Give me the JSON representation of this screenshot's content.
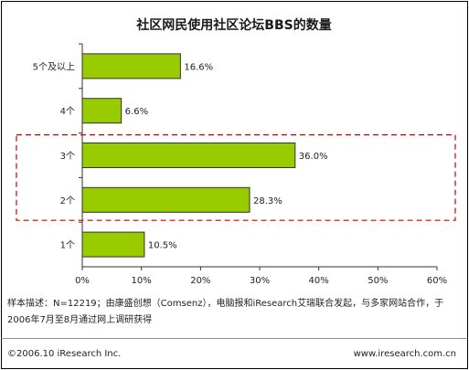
{
  "chart_data": {
    "type": "bar",
    "orientation": "horizontal",
    "title": "社区网民使用社区论坛BBS的数量",
    "categories": [
      "5个及以上",
      "4个",
      "3个",
      "2个",
      "1个"
    ],
    "values": [
      16.6,
      6.6,
      36.0,
      28.3,
      10.5
    ],
    "value_labels": [
      "16.6%",
      "6.6%",
      "36.0%",
      "28.3%",
      "10.5%"
    ],
    "xlim": [
      0,
      60
    ],
    "x_ticks": [
      "0%",
      "10%",
      "20%",
      "30%",
      "40%",
      "50%",
      "60%"
    ],
    "highlighted_categories": [
      "3个",
      "2个"
    ],
    "grid": false
  },
  "colors": {
    "bar_fill": "#99cc00",
    "bar_stroke": "#333333",
    "highlight_box": "#cc0000"
  },
  "footer": {
    "note": "样本描述：N=12219；由康盛创想（Comsenz），电脑报和iResearch艾瑞联合发起，与多家网站合作，于2006年7月至8月通过网上调研获得",
    "copyright": "©2006.10 iResearch Inc.",
    "website": "www.iresearch.com.cn"
  }
}
